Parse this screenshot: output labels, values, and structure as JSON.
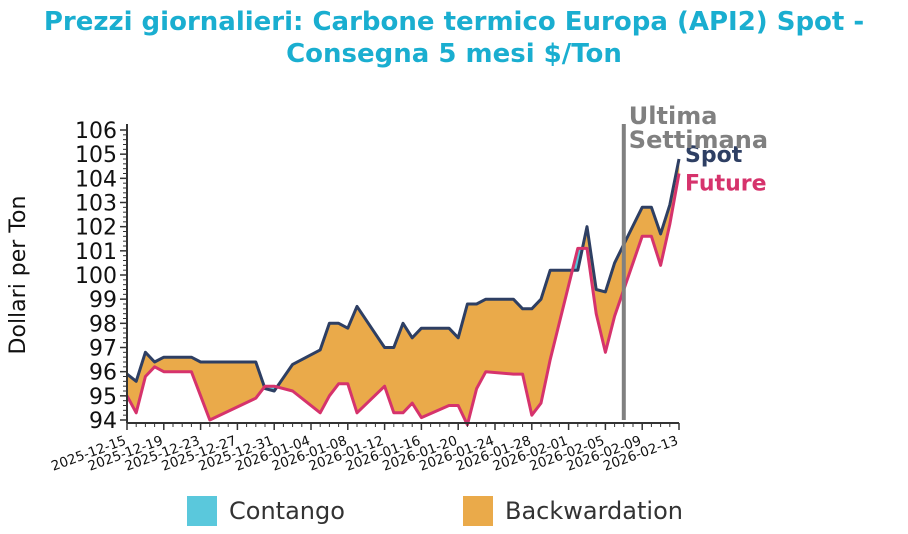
{
  "chart_data": {
    "type": "area",
    "title_line1": "Prezzi giornalieri: Carbone termico Europa (API2) Spot -",
    "title_line2": "Consegna 5 mesi $/Ton",
    "ylabel": "Dollari per Ton",
    "ylim": [
      94,
      106
    ],
    "yticks": [
      "94",
      "95",
      "96",
      "97",
      "98",
      "99",
      "100",
      "101",
      "102",
      "103",
      "104",
      "105",
      "106"
    ],
    "xlim": [
      "2025-12-15",
      "2026-02-13"
    ],
    "xticks": [
      "2025-12-15",
      "2025-12-19",
      "2025-12-23",
      "2025-12-27",
      "2025-12-31",
      "2026-01-04",
      "2026-01-08",
      "2026-01-12",
      "2026-01-16",
      "2026-01-20",
      "2026-01-24",
      "2026-01-28",
      "2026-02-01",
      "2026-02-05",
      "2026-02-09",
      "2026-02-13"
    ],
    "x": [
      "2025-12-15",
      "2025-12-16",
      "2025-12-17",
      "2025-12-18",
      "2025-12-19",
      "2025-12-22",
      "2025-12-23",
      "2025-12-24",
      "2025-12-29",
      "2025-12-30",
      "2025-12-31",
      "2026-01-02",
      "2026-01-05",
      "2026-01-06",
      "2026-01-07",
      "2026-01-08",
      "2026-01-09",
      "2026-01-12",
      "2026-01-13",
      "2026-01-14",
      "2026-01-15",
      "2026-01-16",
      "2026-01-19",
      "2026-01-20",
      "2026-01-21",
      "2026-01-22",
      "2026-01-23",
      "2026-01-26",
      "2026-01-27",
      "2026-01-28",
      "2026-01-29",
      "2026-01-30",
      "2026-02-02",
      "2026-02-03",
      "2026-02-04",
      "2026-02-05",
      "2026-02-06",
      "2026-02-09",
      "2026-02-10",
      "2026-02-11",
      "2026-02-12",
      "2026-02-13"
    ],
    "series": [
      {
        "name": "Spot",
        "color": "#2e3f63",
        "values": [
          95.9,
          95.6,
          96.8,
          96.4,
          96.6,
          96.6,
          96.4,
          96.4,
          96.4,
          95.3,
          95.2,
          96.3,
          96.9,
          98.0,
          98.0,
          97.8,
          98.7,
          97.0,
          97.0,
          98.0,
          97.4,
          97.8,
          97.8,
          97.4,
          98.8,
          98.8,
          99.0,
          99.0,
          98.6,
          98.6,
          99.0,
          100.2,
          100.2,
          102.0,
          99.4,
          99.3,
          100.5,
          102.8,
          102.8,
          101.7,
          102.9,
          104.8
        ]
      },
      {
        "name": "Future",
        "color": "#d6336c",
        "values": [
          95.0,
          94.3,
          95.8,
          96.2,
          96.0,
          96.0,
          95.0,
          94.0,
          94.9,
          95.4,
          95.4,
          95.2,
          94.3,
          95.0,
          95.5,
          95.5,
          94.3,
          95.4,
          94.3,
          94.3,
          94.7,
          94.1,
          94.6,
          94.6,
          93.8,
          95.3,
          96.0,
          95.9,
          95.9,
          94.2,
          94.7,
          96.5,
          101.1,
          101.1,
          98.4,
          96.8,
          98.3,
          101.6,
          101.6,
          100.4,
          102.1,
          104.2
        ]
      }
    ],
    "fill_colors": {
      "contango": "#5ac8dc",
      "backwardation": "#eaaa4a"
    },
    "legend": {
      "contango": "Contango",
      "backwardation": "Backwardation"
    },
    "marker": {
      "date": "2026-02-07",
      "label_line1": "Ultima",
      "label_line2": "Settimana",
      "color": "#808080"
    },
    "grid": false
  }
}
